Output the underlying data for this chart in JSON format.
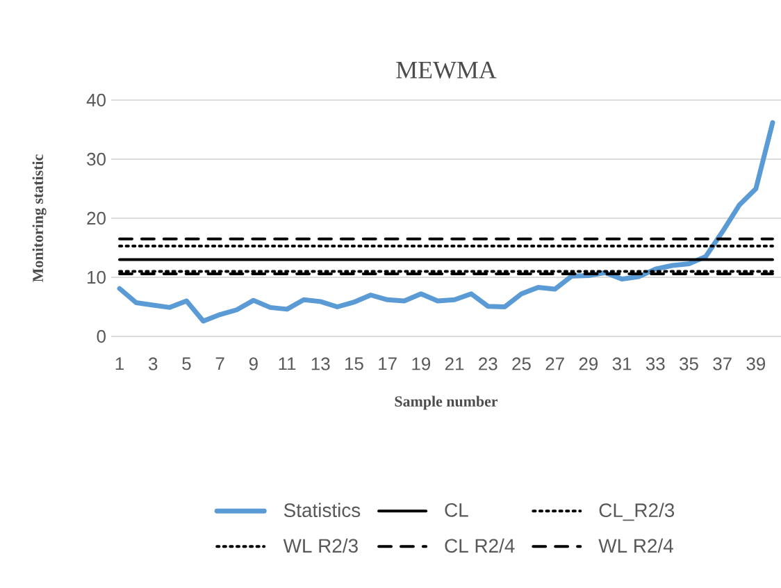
{
  "chart_data": {
    "type": "line",
    "title": "MEWMA",
    "xlabel": "Sample number",
    "ylabel": "Monitoring statistic",
    "categories": [
      "1",
      null,
      "3",
      null,
      "5",
      null,
      "7",
      null,
      "9",
      null,
      "11",
      null,
      "13",
      null,
      "15",
      null,
      "17",
      null,
      "19",
      null,
      "21",
      null,
      "23",
      null,
      "25",
      null,
      "27",
      null,
      "29",
      null,
      "31",
      null,
      "33",
      null,
      "35",
      null,
      "37",
      null,
      "39",
      null
    ],
    "series": [
      {
        "name": "Statistics",
        "color": "#5b9bd5",
        "line_style": "solid",
        "values": [
          8.1,
          5.7,
          5.3,
          4.9,
          6.0,
          2.6,
          3.7,
          4.5,
          6.1,
          4.9,
          4.6,
          6.2,
          5.9,
          5.0,
          5.8,
          7.0,
          6.2,
          6.0,
          7.2,
          6.0,
          6.2,
          7.2,
          5.1,
          5.0,
          7.2,
          8.3,
          8.0,
          10.2,
          10.3,
          10.8,
          9.7,
          10.1,
          11.4,
          12.0,
          12.3,
          13.5,
          17.7,
          22.2,
          25.0,
          36.2
        ]
      },
      {
        "name": "CL",
        "color": "#000000",
        "line_style": "solid",
        "values": [
          13,
          13,
          13,
          13,
          13,
          13,
          13,
          13,
          13,
          13,
          13,
          13,
          13,
          13,
          13,
          13,
          13,
          13,
          13,
          13,
          13,
          13,
          13,
          13,
          13,
          13,
          13,
          13,
          13,
          13,
          13,
          13,
          13,
          13,
          13,
          13,
          13,
          13,
          13,
          13
        ]
      },
      {
        "name": "CL_R2/3",
        "color": "#000000",
        "line_style": "dotted",
        "values": [
          15.3,
          15.3,
          15.3,
          15.3,
          15.3,
          15.3,
          15.3,
          15.3,
          15.3,
          15.3,
          15.3,
          15.3,
          15.3,
          15.3,
          15.3,
          15.3,
          15.3,
          15.3,
          15.3,
          15.3,
          15.3,
          15.3,
          15.3,
          15.3,
          15.3,
          15.3,
          15.3,
          15.3,
          15.3,
          15.3,
          15.3,
          15.3,
          15.3,
          15.3,
          15.3,
          15.3,
          15.3,
          15.3,
          15.3,
          15.3
        ]
      },
      {
        "name": "WL R2/3",
        "color": "#000000",
        "line_style": "dotted",
        "values": [
          11,
          11,
          11,
          11,
          11,
          11,
          11,
          11,
          11,
          11,
          11,
          11,
          11,
          11,
          11,
          11,
          11,
          11,
          11,
          11,
          11,
          11,
          11,
          11,
          11,
          11,
          11,
          11,
          11,
          11,
          11,
          11,
          11,
          11,
          11,
          11,
          11,
          11,
          11,
          11
        ]
      },
      {
        "name": "CL R2/4",
        "color": "#000000",
        "line_style": "dashed",
        "values": [
          16.5,
          16.5,
          16.5,
          16.5,
          16.5,
          16.5,
          16.5,
          16.5,
          16.5,
          16.5,
          16.5,
          16.5,
          16.5,
          16.5,
          16.5,
          16.5,
          16.5,
          16.5,
          16.5,
          16.5,
          16.5,
          16.5,
          16.5,
          16.5,
          16.5,
          16.5,
          16.5,
          16.5,
          16.5,
          16.5,
          16.5,
          16.5,
          16.5,
          16.5,
          16.5,
          16.5,
          16.5,
          16.5,
          16.5,
          16.5
        ]
      },
      {
        "name": "WL R2/4",
        "color": "#000000",
        "line_style": "dashed",
        "values": [
          10.6,
          10.6,
          10.6,
          10.6,
          10.6,
          10.6,
          10.6,
          10.6,
          10.6,
          10.6,
          10.6,
          10.6,
          10.6,
          10.6,
          10.6,
          10.6,
          10.6,
          10.6,
          10.6,
          10.6,
          10.6,
          10.6,
          10.6,
          10.6,
          10.6,
          10.6,
          10.6,
          10.6,
          10.6,
          10.6,
          10.6,
          10.6,
          10.6,
          10.6,
          10.6,
          10.6,
          10.6,
          10.6,
          10.6,
          10.6
        ]
      }
    ],
    "ylim": [
      0,
      40
    ],
    "yticks": [
      0,
      10,
      20,
      30,
      40
    ],
    "grid": "y",
    "legend": "bottom",
    "marker": "none"
  }
}
